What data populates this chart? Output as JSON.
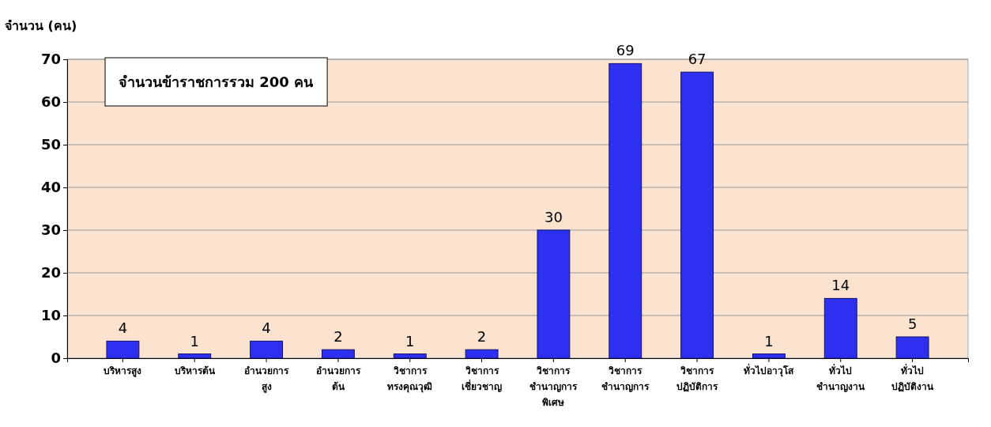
{
  "chart_data": {
    "type": "bar",
    "ylabel": "จำนวน (คน)",
    "categories": [
      "บริหารสูง",
      "บริหารต้น",
      "อำนวยการ สูง",
      "อำนวยการ ต้น",
      "วิชาการ ทรงคุณวุฒิ",
      "วิชาการ เชี่ยวชาญ",
      "วิชาการ ชำนาญการ พิเศษ",
      "วิชาการ ชำนาญการ",
      "วิชาการ ปฏิบัติการ",
      "ทั่วไปอาวุโส",
      "ทั่วไป ชำนาญงาน",
      "ทั่วไป ปฏิบัติงาน"
    ],
    "values": [
      4,
      1,
      4,
      2,
      1,
      2,
      30,
      69,
      67,
      1,
      14,
      5
    ],
    "color": "#2f2ff0",
    "ylim": [
      0,
      70
    ],
    "yticks": [
      0,
      10,
      20,
      30,
      40,
      50,
      60,
      70
    ],
    "grid": "y",
    "data_labels": true,
    "annotations": [
      "จำนวนข้าราชการรวม 200 คน"
    ]
  }
}
